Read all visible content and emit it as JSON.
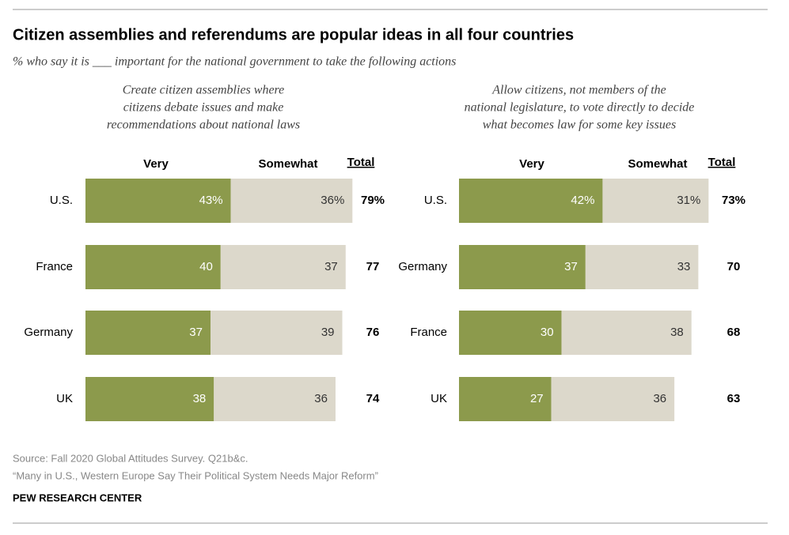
{
  "title": "Citizen assemblies and referendums are popular ideas in all four countries",
  "subtitle": "% who say it is ___ important for the national government to take the following actions",
  "source": "Source: Fall 2020 Global Attitudes Survey. Q21b&c.",
  "report": "“Many in U.S., Western Europe Say Their Political System Needs Major Reform”",
  "publisher": "PEW RESEARCH CENTER",
  "chart_data": [
    {
      "type": "stacked_bar",
      "title": [
        "Create citizen assemblies where",
        "citizens debate issues and make",
        "recommendations about national laws"
      ],
      "categories": [
        "U.S.",
        "France",
        "Germany",
        "UK"
      ],
      "series": [
        {
          "name": "Very",
          "color": "#8c9a4c",
          "values": [
            43,
            40,
            37,
            38
          ],
          "value_labels": [
            "43%",
            "40",
            "37",
            "38"
          ]
        },
        {
          "name": "Somewhat",
          "color": "#dcd8cb",
          "values": [
            36,
            37,
            39,
            36
          ],
          "value_labels": [
            "36%",
            "37",
            "39",
            "36"
          ]
        }
      ],
      "totals": {
        "name": "Total",
        "values": [
          79,
          77,
          76,
          74
        ],
        "value_labels": [
          "79%",
          "77",
          "76",
          "74"
        ]
      }
    },
    {
      "type": "stacked_bar",
      "title": [
        "Allow citizens, not members of the",
        "national legislature, to vote directly to decide",
        "what becomes law for some key issues"
      ],
      "categories": [
        "U.S.",
        "Germany",
        "France",
        "UK"
      ],
      "series": [
        {
          "name": "Very",
          "color": "#8c9a4c",
          "values": [
            42,
            37,
            30,
            27
          ],
          "value_labels": [
            "42%",
            "37",
            "30",
            "27"
          ]
        },
        {
          "name": "Somewhat",
          "color": "#dcd8cb",
          "values": [
            31,
            33,
            38,
            36
          ],
          "value_labels": [
            "31%",
            "33",
            "38",
            "36"
          ]
        }
      ],
      "totals": {
        "name": "Total",
        "values": [
          73,
          70,
          68,
          63
        ],
        "value_labels": [
          "73%",
          "70",
          "68",
          "63"
        ]
      }
    }
  ]
}
